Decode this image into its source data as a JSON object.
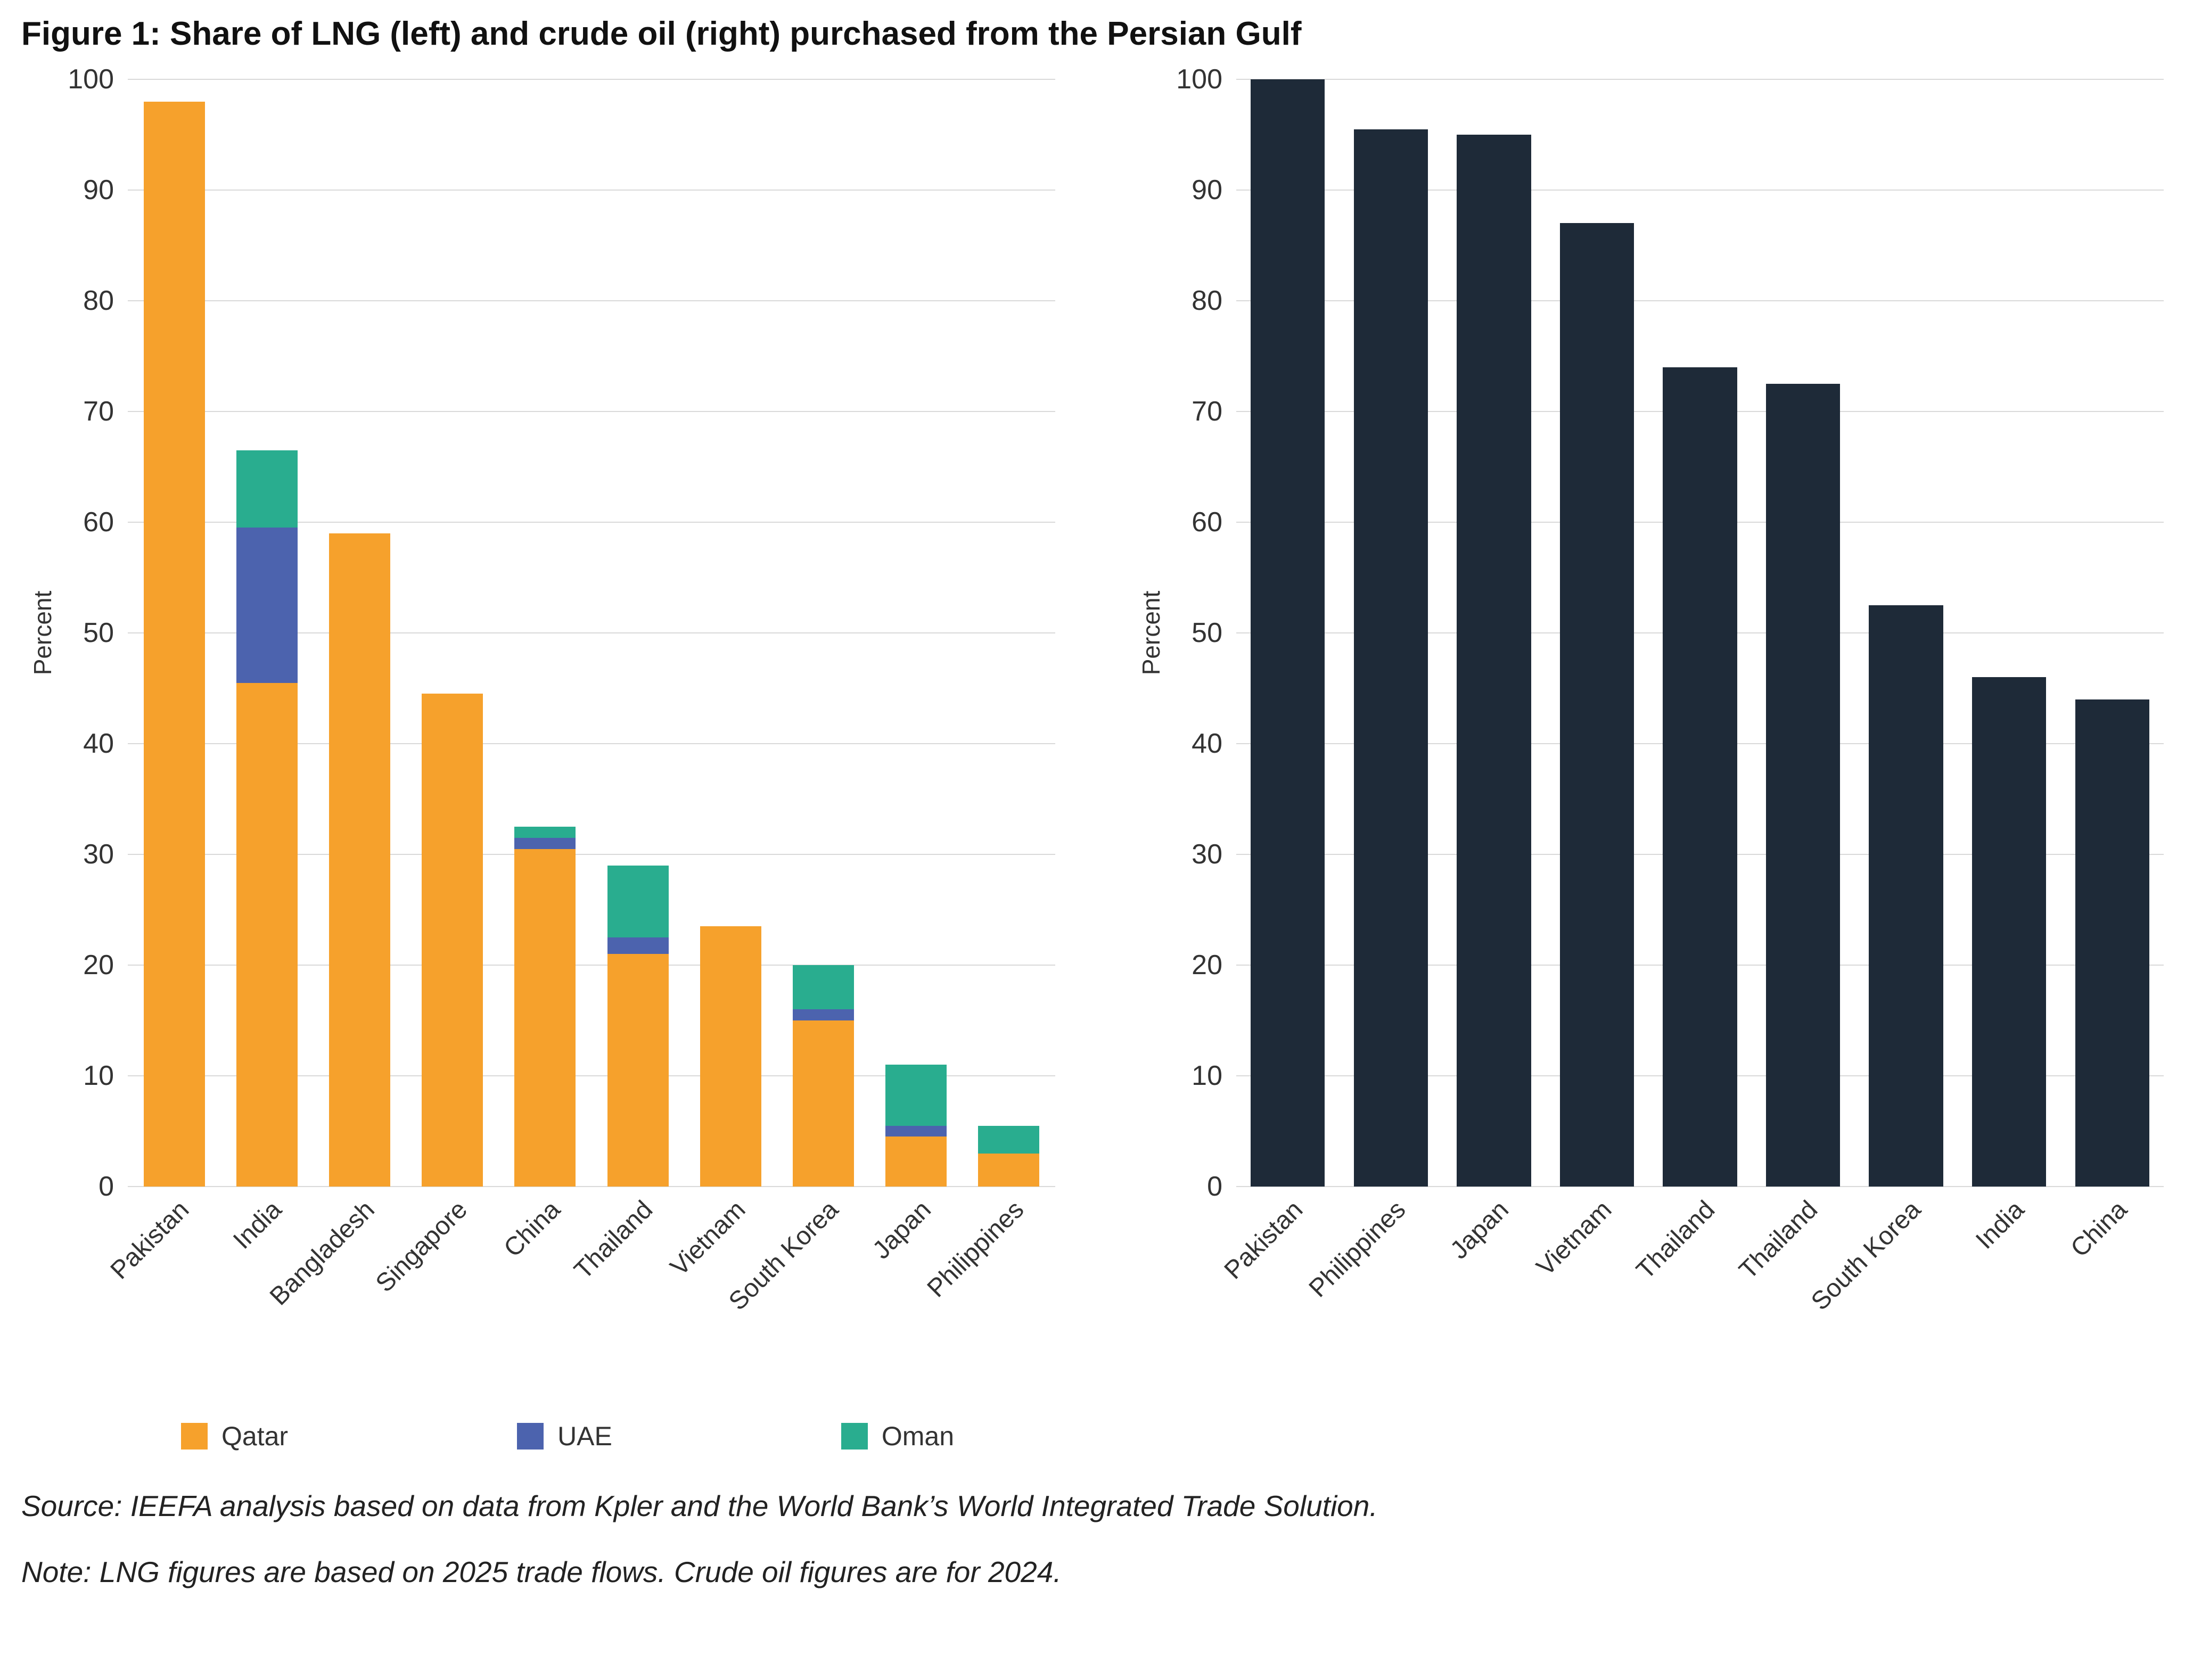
{
  "title": "Figure 1: Share of LNG (left) and crude oil (right) purchased from the Persian Gulf",
  "source": "Source: IEEFA analysis based on data from Kpler and the World Bank’s World Integrated Trade Solution.",
  "note": "Note: LNG figures are based on 2025 trade flows. Crude oil figures are for 2024.",
  "colors": {
    "qatar": "#F6A12C",
    "uae": "#4C63AE",
    "oman": "#29AD8F",
    "crude": "#1E2A38",
    "grid": "#d9d9d9"
  },
  "legend": [
    {
      "label": "Qatar",
      "color": "#F6A12C"
    },
    {
      "label": "UAE",
      "color": "#4C63AE"
    },
    {
      "label": "Oman",
      "color": "#29AD8F"
    }
  ],
  "chart_data": [
    {
      "type": "bar",
      "stacked": true,
      "panel": "left",
      "subject": "LNG",
      "ylabel": "Percent",
      "ylim": [
        0,
        100
      ],
      "ytick_interval": 10,
      "grid": true,
      "categories": [
        "Pakistan",
        "India",
        "Bangladesh",
        "Singapore",
        "China",
        "Thailand",
        "Vietnam",
        "South Korea",
        "Japan",
        "Philippines"
      ],
      "series": [
        {
          "name": "Qatar",
          "color": "#F6A12C",
          "values": [
            98,
            45.5,
            59,
            44.5,
            30.5,
            21,
            23.5,
            15,
            4.5,
            3
          ]
        },
        {
          "name": "UAE",
          "color": "#4C63AE",
          "values": [
            0,
            14,
            0,
            0,
            1,
            1.5,
            0,
            1,
            1,
            0
          ]
        },
        {
          "name": "Oman",
          "color": "#29AD8F",
          "values": [
            0,
            7,
            0,
            0,
            1,
            6.5,
            0,
            4,
            5.5,
            2.5
          ]
        }
      ]
    },
    {
      "type": "bar",
      "stacked": false,
      "panel": "right",
      "subject": "crude oil",
      "ylabel": "Percent",
      "ylim": [
        0,
        100
      ],
      "ytick_interval": 10,
      "grid": true,
      "categories": [
        "Pakistan",
        "Philippines",
        "Japan",
        "Vietnam",
        "Thailand",
        "Thailand",
        "South Korea",
        "India",
        "China"
      ],
      "series": [
        {
          "name": "Persian Gulf",
          "color": "#1E2A38",
          "values": [
            100,
            95.5,
            95,
            87,
            74,
            72.5,
            52.5,
            46,
            44
          ]
        }
      ]
    }
  ]
}
